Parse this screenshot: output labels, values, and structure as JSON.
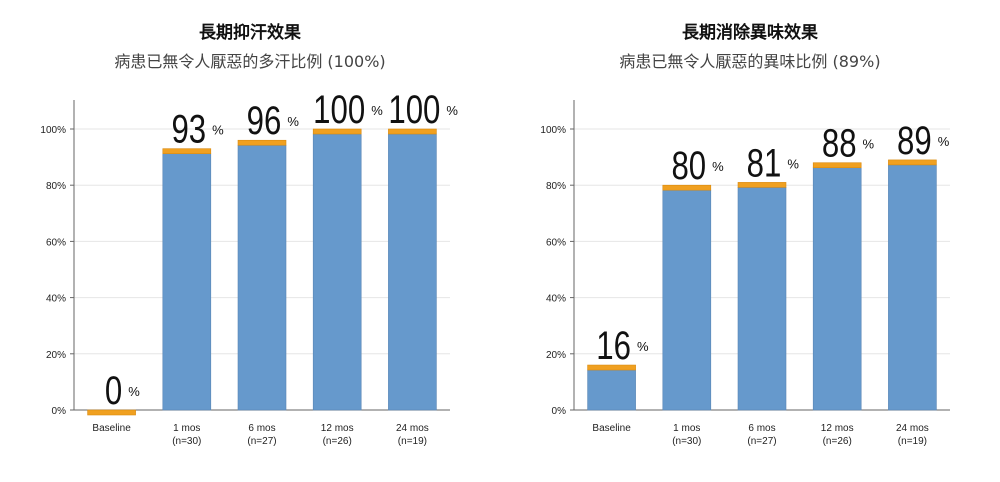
{
  "colors": {
    "bar": "#6699cc",
    "cap": "#f0a020",
    "axis": "#666666",
    "grid": "#e6e6e6"
  },
  "chart_data": [
    {
      "type": "bar",
      "title": "長期抑汗效果",
      "subtitle": "病患已無令人厭惡的多汗比例 (100%)",
      "categories": [
        "Baseline",
        "1 mos",
        "6 mos",
        "12 mos",
        "24 mos"
      ],
      "category_sublabels": [
        "",
        "(n=30)",
        "(n=27)",
        "(n=26)",
        "(n=19)"
      ],
      "values": [
        0,
        93,
        96,
        100,
        100
      ],
      "value_labels": [
        "0",
        "93",
        "96",
        "100",
        "100"
      ],
      "value_suffix": "%",
      "yticks": [
        "0%",
        "20%",
        "40%",
        "60%",
        "80%",
        "100%"
      ],
      "ylim": [
        0,
        110
      ],
      "grid": true
    },
    {
      "type": "bar",
      "title": "長期消除異味效果",
      "subtitle": "病患已無令人厭惡的異味比例 (89%)",
      "categories": [
        "Baseline",
        "1 mos",
        "6 mos",
        "12 mos",
        "24 mos"
      ],
      "category_sublabels": [
        "",
        "(n=30)",
        "(n=27)",
        "(n=26)",
        "(n=19)"
      ],
      "values": [
        16,
        80,
        81,
        88,
        89
      ],
      "value_labels": [
        "16",
        "80",
        "81",
        "88",
        "89"
      ],
      "value_suffix": "%",
      "yticks": [
        "0%",
        "20%",
        "40%",
        "60%",
        "80%",
        "100%"
      ],
      "ylim": [
        0,
        110
      ],
      "grid": true
    }
  ]
}
